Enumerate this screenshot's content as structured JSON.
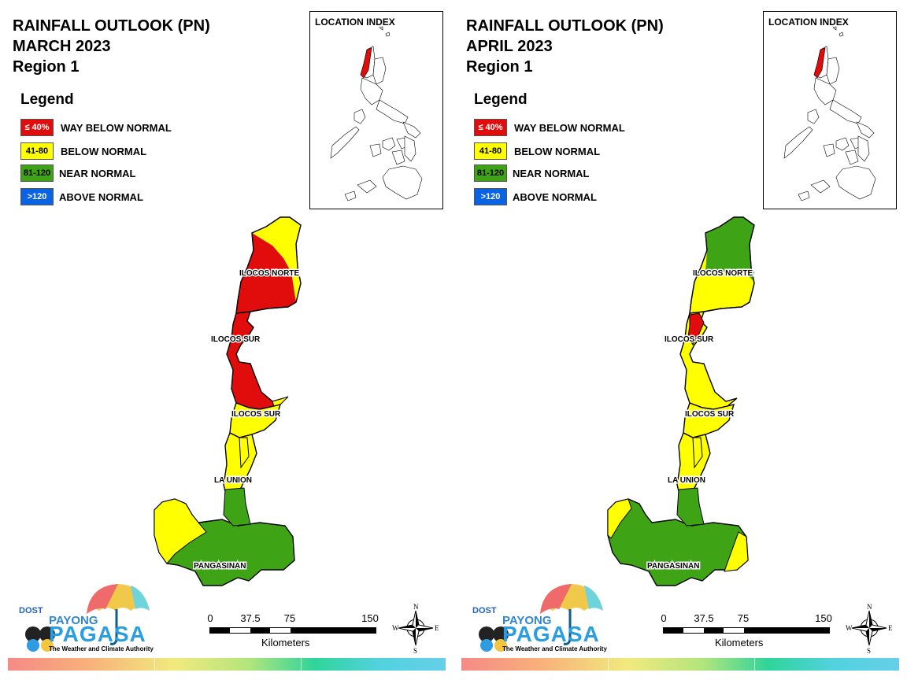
{
  "colors": {
    "way_below": "#e10c0c",
    "below": "#ffff00",
    "near": "#3ea416",
    "above": "#0a63e2",
    "inset_highlight": "#e10c0c"
  },
  "legend": {
    "title": "Legend",
    "items": [
      {
        "code": "≤ 40%",
        "label": "WAY BELOW NORMAL",
        "color": "#e10c0c",
        "text_color": "#ffffff"
      },
      {
        "code": "41-80",
        "label": "BELOW NORMAL",
        "color": "#ffff00",
        "text_color": "#000000"
      },
      {
        "code": "81-120",
        "label": "NEAR NORMAL",
        "color": "#3ea416",
        "text_color": "#000000"
      },
      {
        "code": ">120",
        "label": "ABOVE NORMAL",
        "color": "#0a63e2",
        "text_color": "#ffffff"
      }
    ]
  },
  "panels": [
    {
      "title": "RAINFALL OUTLOOK (PN)",
      "month": "MARCH 2023",
      "region": "Region 1",
      "inset_label": "LOCATION INDEX",
      "provinces": {
        "ilocos_norte": {
          "label": "ILOCOS NORTE",
          "category": "way_below"
        },
        "ilocos_sur_north": {
          "label": "ILOCOS SUR",
          "category": "way_below"
        },
        "ilocos_sur_south": {
          "label": "ILOCOS SUR",
          "category": "below"
        },
        "la_union": {
          "label": "LA UNION",
          "category": "below"
        },
        "pangasinan": {
          "label": "PANGASINAN",
          "category": "near"
        }
      },
      "scale": {
        "ticks": [
          "0",
          "37.5",
          "75",
          "150"
        ],
        "unit": "Kilometers"
      },
      "compass": {
        "n": "N",
        "s": "S",
        "e": "E",
        "w": "W"
      },
      "logo": {
        "agency": "DOST",
        "brand_top": "PAYONG",
        "brand_main": "PAGASA",
        "tagline": "The Weather and Climate Authority"
      }
    },
    {
      "title": "RAINFALL OUTLOOK (PN)",
      "month": "APRIL 2023",
      "region": "Region 1",
      "inset_label": "LOCATION INDEX",
      "provinces": {
        "ilocos_norte": {
          "label": "ILOCOS NORTE",
          "category": "below"
        },
        "ilocos_sur_north": {
          "label": "ILOCOS SUR",
          "category": "below"
        },
        "ilocos_sur_south": {
          "label": "ILOCOS SUR",
          "category": "below"
        },
        "la_union": {
          "label": "LA UNION",
          "category": "below"
        },
        "pangasinan": {
          "label": "PANGASINAN",
          "category": "near"
        }
      },
      "scale": {
        "ticks": [
          "0",
          "37.5",
          "75",
          "150"
        ],
        "unit": "Kilometers"
      },
      "compass": {
        "n": "N",
        "s": "S",
        "e": "E",
        "w": "W"
      },
      "logo": {
        "agency": "DOST",
        "brand_top": "PAYONG",
        "brand_main": "PAGASA",
        "tagline": "The Weather and Climate Authority"
      }
    }
  ]
}
